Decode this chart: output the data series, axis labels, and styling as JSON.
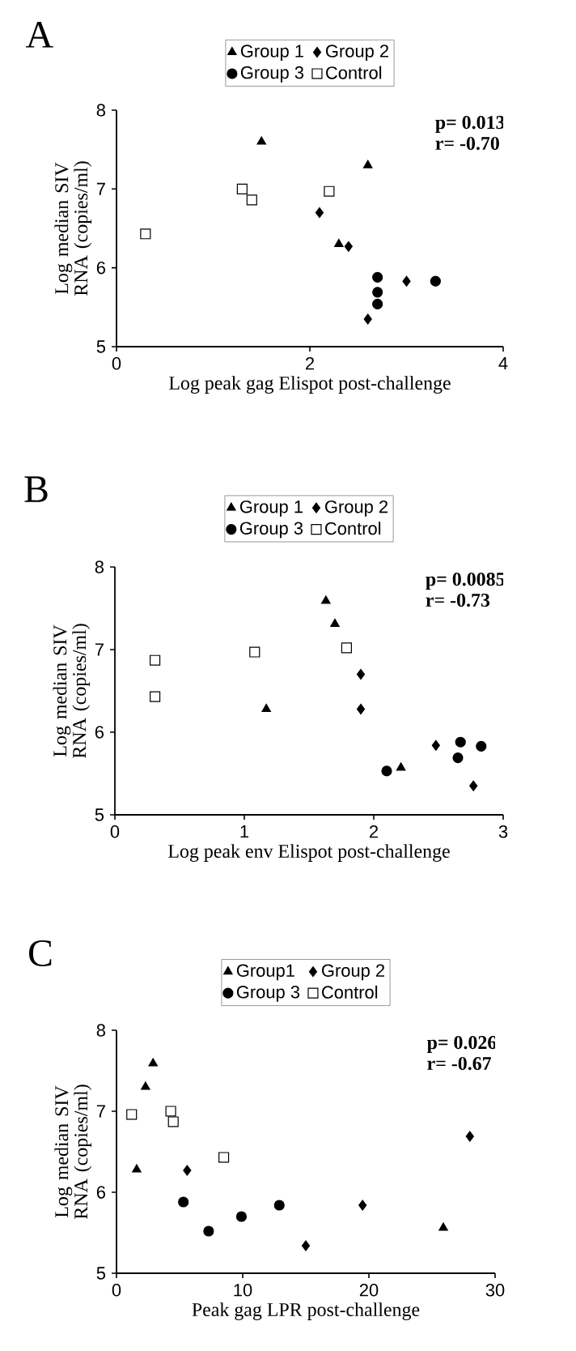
{
  "chart_data": [
    {
      "type": "scatter",
      "title": "A",
      "xlabel": "Log peak gag Elispot post-challenge",
      "ylabel": "Log median SIV RNA (copies/ml)",
      "xlim": [
        0,
        4
      ],
      "xticks": [
        0,
        2,
        4
      ],
      "ylim": [
        5,
        8
      ],
      "yticks": [
        5,
        6,
        7,
        8
      ],
      "legend": "top",
      "annotations": [
        "p= 0.013",
        "r= -0.70"
      ],
      "series": [
        {
          "name": "Group 1",
          "color": "#000000",
          "marker": "triangle",
          "x": [
            1.5,
            2.6,
            2.3
          ],
          "values": [
            7.6,
            7.3,
            6.3
          ]
        },
        {
          "name": "Group 2",
          "color": "#000000",
          "marker": "diamond",
          "x": [
            2.1,
            2.4,
            3.0,
            2.6
          ],
          "values": [
            6.7,
            6.27,
            5.83,
            5.35
          ]
        },
        {
          "name": "Group 3",
          "color": "#000000",
          "marker": "circle",
          "x": [
            2.7,
            2.7,
            2.7,
            3.3
          ],
          "values": [
            5.88,
            5.69,
            5.54,
            5.83
          ]
        },
        {
          "name": "Control",
          "color": "#000000",
          "marker": "square",
          "x": [
            0.3,
            1.3,
            1.4,
            2.2
          ],
          "values": [
            6.43,
            7.0,
            6.86,
            6.97
          ]
        }
      ]
    },
    {
      "type": "scatter",
      "title": "B",
      "xlabel": "Log peak env Elispot post-challenge",
      "ylabel": "Log median SIV RNA (copies/ml)",
      "xlim": [
        0,
        3
      ],
      "xticks": [
        0,
        1,
        2,
        3
      ],
      "ylim": [
        5,
        8
      ],
      "yticks": [
        5,
        6,
        7,
        8
      ],
      "legend": "top",
      "annotations": [
        "p= 0.0085",
        "r= -0.73"
      ],
      "series": [
        {
          "name": "Group 1",
          "color": "#000000",
          "marker": "triangle",
          "x": [
            1.63,
            1.7,
            1.17,
            2.21
          ],
          "values": [
            7.59,
            7.31,
            6.28,
            5.57
          ]
        },
        {
          "name": "Group 2",
          "color": "#000000",
          "marker": "diamond",
          "x": [
            1.9,
            1.9,
            2.48,
            2.77
          ],
          "values": [
            6.7,
            6.28,
            5.84,
            5.35
          ]
        },
        {
          "name": "Group 3",
          "color": "#000000",
          "marker": "circle",
          "x": [
            2.1,
            2.65,
            2.67,
            2.83
          ],
          "values": [
            5.53,
            5.69,
            5.88,
            5.83
          ]
        },
        {
          "name": "Control",
          "color": "#000000",
          "marker": "square",
          "x": [
            0.31,
            0.31,
            1.08,
            1.79
          ],
          "values": [
            6.87,
            6.43,
            6.97,
            7.02
          ]
        }
      ]
    },
    {
      "type": "scatter",
      "title": "C",
      "xlabel": "Peak gag LPR post-challenge",
      "ylabel": "Log median SIV RNA (copies/ml)",
      "xlim": [
        0,
        30
      ],
      "xticks": [
        0,
        10,
        20,
        30
      ],
      "ylim": [
        5,
        8
      ],
      "yticks": [
        5,
        6,
        7,
        8
      ],
      "legend": "top",
      "annotations": [
        "p= 0.026",
        "r= -0.67"
      ],
      "series": [
        {
          "name": "Group1",
          "color": "#000000",
          "marker": "triangle",
          "x": [
            1.6,
            2.3,
            2.9,
            25.9
          ],
          "values": [
            6.28,
            7.3,
            7.59,
            5.56
          ]
        },
        {
          "name": "Group 2",
          "color": "#000000",
          "marker": "diamond",
          "x": [
            5.6,
            15.0,
            19.5,
            28.0
          ],
          "values": [
            6.27,
            5.34,
            5.84,
            6.69
          ]
        },
        {
          "name": "Group 3",
          "color": "#000000",
          "marker": "circle",
          "x": [
            5.3,
            7.3,
            9.9,
            12.9
          ],
          "values": [
            5.88,
            5.52,
            5.7,
            5.84
          ]
        },
        {
          "name": "Control",
          "color": "#000000",
          "marker": "square",
          "x": [
            1.2,
            4.3,
            4.5,
            8.5
          ],
          "values": [
            6.96,
            7.0,
            6.87,
            6.43
          ]
        }
      ]
    }
  ]
}
